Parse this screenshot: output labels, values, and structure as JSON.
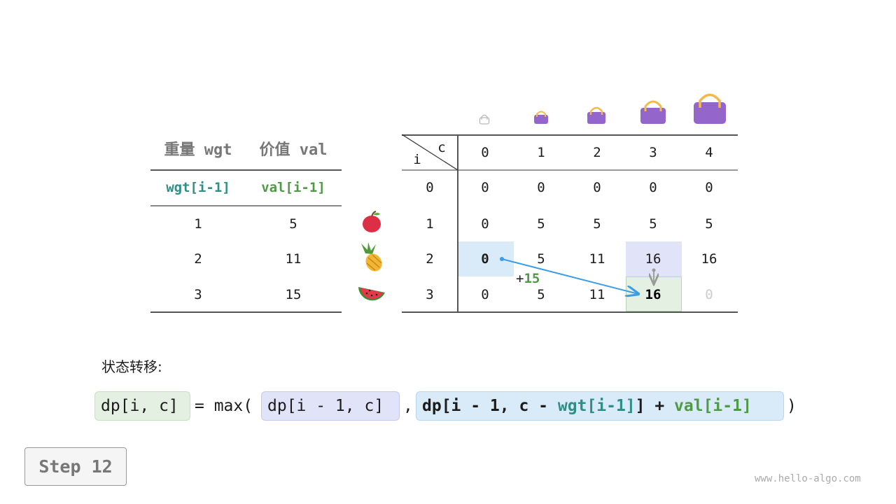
{
  "items_table": {
    "headers": [
      "重量 wgt",
      "价值 val"
    ],
    "subheaders": [
      "wgt[i-1]",
      "val[i-1]"
    ],
    "rows": [
      {
        "wgt": "1",
        "val": "5",
        "icon": "apple-icon"
      },
      {
        "wgt": "2",
        "val": "11",
        "icon": "pineapple-icon"
      },
      {
        "wgt": "3",
        "val": "15",
        "icon": "watermelon-icon"
      }
    ]
  },
  "dp_table": {
    "corner_row_label": "i",
    "corner_col_label": "c",
    "col_headers": [
      "0",
      "1",
      "2",
      "3",
      "4"
    ],
    "row_headers": [
      "0",
      "1",
      "2",
      "3"
    ],
    "rows": [
      [
        "0",
        "0",
        "0",
        "0",
        "0"
      ],
      [
        "0",
        "5",
        "5",
        "5",
        "5"
      ],
      [
        "0",
        "5",
        "11",
        "16",
        "16"
      ],
      [
        "0",
        "5",
        "11",
        "16",
        "0"
      ]
    ],
    "bag_icons": [
      "bag-capacity-0-icon",
      "bag-capacity-1-icon",
      "bag-capacity-2-icon",
      "bag-capacity-3-icon",
      "bag-capacity-4-icon"
    ],
    "annotation": "+",
    "annotation_value": "15"
  },
  "formula": {
    "label": "状态转移:",
    "lhs": "dp[i, c]",
    "eq": "= max(",
    "opt1": "dp[i - 1, c]",
    "comma": ",",
    "opt2_a": "dp[i - 1, c - ",
    "opt2_wgt": "wgt[i-1]",
    "opt2_b": "] + ",
    "opt2_val": "val[i-1]",
    "close": ")"
  },
  "step_label": "Step 12",
  "watermark": "www.hello-algo.com",
  "colors": {
    "blue_cell": "#d9eaf9",
    "lavender_cell": "#e1e4f8",
    "green_cell": "#e4f0e2",
    "teal": "#2f8f85",
    "green": "#4f9a44",
    "bag": "#9466cc",
    "arrow": "#3a9de6"
  }
}
